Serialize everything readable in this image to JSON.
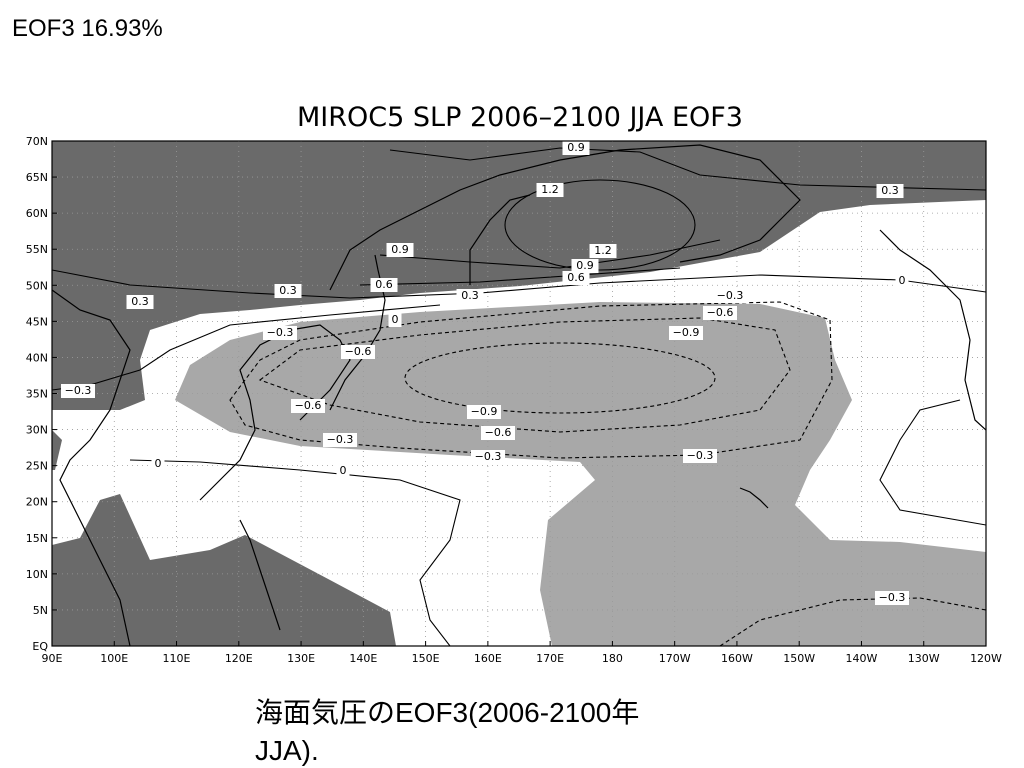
{
  "header": {
    "label": "EOF3  16.93%"
  },
  "map": {
    "title": "MIROC5 SLP 2006–2100 JJA EOF3",
    "lat_labels": [
      "70N",
      "65N",
      "60N",
      "55N",
      "50N",
      "45N",
      "40N",
      "35N",
      "30N",
      "25N",
      "20N",
      "15N",
      "10N",
      "5N",
      "EQ"
    ],
    "lon_labels": [
      "90E",
      "100E",
      "110E",
      "120E",
      "130E",
      "140E",
      "150E",
      "160E",
      "170E",
      "180",
      "170W",
      "160W",
      "150W",
      "140W",
      "130W",
      "120W"
    ],
    "contour_labels": [
      "0.9",
      "1.2",
      "0.3",
      "0.9",
      "1.2",
      "0.9",
      "0.6",
      "0.3",
      "0.3",
      "0.6",
      "0.3",
      "0",
      "0",
      "−0.3",
      "−0.6",
      "−0.9",
      "−0.3",
      "−0.6",
      "−0.6",
      "−0.9",
      "−0.6",
      "−0.3",
      "−0.3",
      "−0.3",
      "−0.3",
      "0",
      "0",
      "−0.3"
    ]
  },
  "caption": {
    "lines": [
      "海面気圧のEOF3(2006-2100年",
      "JJA)."
    ]
  }
}
